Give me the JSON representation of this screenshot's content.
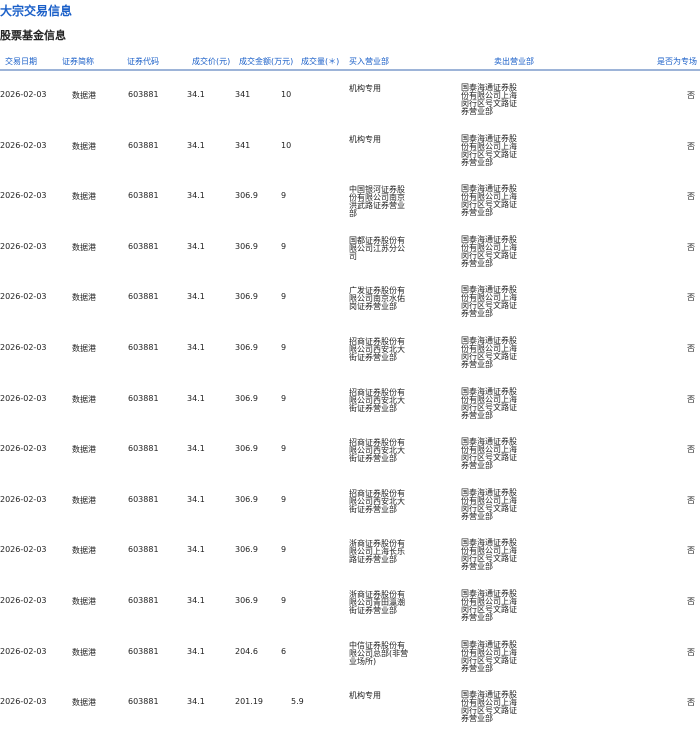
{
  "title": "大宗交易信息",
  "subtitle": "股票基金信息",
  "columns": [
    "交易日期",
    "证券简称",
    "证券代码",
    "成交价(元)",
    "成交金额(万元)",
    "成交量(＊)",
    "买入营业部",
    "卖出营业部",
    "是否为专场"
  ],
  "rows": [
    [
      "2026-02-03",
      "数据港",
      "603881",
      "34.1",
      "341",
      "10",
      "机构专用",
      "国泰海通证券股份有限公司上海闵行区号文路证券营业部",
      "否"
    ],
    [
      "2026-02-03",
      "数据港",
      "603881",
      "34.1",
      "341",
      "10",
      "机构专用",
      "国泰海通证券股份有限公司上海闵行区号文路证券营业部",
      "否"
    ],
    [
      "2026-02-03",
      "数据港",
      "603881",
      "34.1",
      "306.9",
      "9",
      "中国银河证券股份有限公司南京洪武路证券营业部",
      "国泰海通证券股份有限公司上海闵行区号文路证券营业部",
      "否"
    ],
    [
      "2026-02-03",
      "数据港",
      "603881",
      "34.1",
      "306.9",
      "9",
      "国都证券股份有限公司江苏分公司",
      "国泰海通证券股份有限公司上海闵行区号文路证券营业部",
      "否"
    ],
    [
      "2026-02-03",
      "数据港",
      "603881",
      "34.1",
      "306.9",
      "9",
      "广发证券股份有限公司南京水佑岗证券营业部",
      "国泰海通证券股份有限公司上海闵行区号文路证券营业部",
      "否"
    ],
    [
      "2026-02-03",
      "数据港",
      "603881",
      "34.1",
      "306.9",
      "9",
      "招商证券股份有限公司西安北大街证券营业部",
      "国泰海通证券股份有限公司上海闵行区号文路证券营业部",
      "否"
    ],
    [
      "2026-02-03",
      "数据港",
      "603881",
      "34.1",
      "306.9",
      "9",
      "招商证券股份有限公司西安北大街证券营业部",
      "国泰海通证券股份有限公司上海闵行区号文路证券营业部",
      "否"
    ],
    [
      "2026-02-03",
      "数据港",
      "603881",
      "34.1",
      "306.9",
      "9",
      "招商证券股份有限公司西安北大街证券营业部",
      "国泰海通证券股份有限公司上海闵行区号文路证券营业部",
      "否"
    ],
    [
      "2026-02-03",
      "数据港",
      "603881",
      "34.1",
      "306.9",
      "9",
      "招商证券股份有限公司西安北大街证券营业部",
      "国泰海通证券股份有限公司上海闵行区号文路证券营业部",
      "否"
    ],
    [
      "2026-02-03",
      "数据港",
      "603881",
      "34.1",
      "306.9",
      "9",
      "浙商证券股份有限公司上海长乐路证券营业部",
      "国泰海通证券股份有限公司上海闵行区号文路证券营业部",
      "否"
    ],
    [
      "2026-02-03",
      "数据港",
      "603881",
      "34.1",
      "306.9",
      "9",
      "浙商证券股份有限公司青田瀛潮街证券营业部",
      "国泰海通证券股份有限公司上海闵行区号文路证券营业部",
      "否"
    ],
    [
      "2026-02-03",
      "数据港",
      "603881",
      "34.1",
      "204.6",
      "6",
      "中信证券股份有限公司总部(非营业场所)",
      "国泰海通证券股份有限公司上海闵行区号文路证券营业部",
      "否"
    ],
    [
      "2026-02-03",
      "数据港",
      "603881",
      "34.1",
      "201.19",
      "5.9",
      "机构专用",
      "国泰海通证券股份有限公司上海闵行区号文路证券营业部",
      "否"
    ]
  ]
}
